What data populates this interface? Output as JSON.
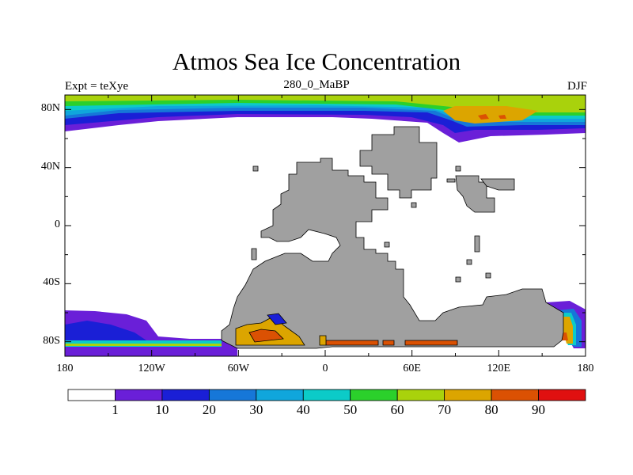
{
  "title": "Atmos Sea Ice Concentration",
  "subtitle_left": "Expt = teXye",
  "subtitle_center": "280_0_MaBP",
  "subtitle_right": "DJF",
  "map": {
    "x_ticks": [
      {
        "lon": -180,
        "label": "180"
      },
      {
        "lon": -120,
        "label": "120W"
      },
      {
        "lon": -60,
        "label": "60W"
      },
      {
        "lon": 0,
        "label": "0"
      },
      {
        "lon": 60,
        "label": "60E"
      },
      {
        "lon": 120,
        "label": "120E"
      },
      {
        "lon": 180,
        "label": "180"
      }
    ],
    "y_ticks": [
      {
        "lat": 80,
        "label": "80N"
      },
      {
        "lat": 40,
        "label": "40N"
      },
      {
        "lat": 0,
        "label": "0"
      },
      {
        "lat": -40,
        "label": "40S"
      },
      {
        "lat": -80,
        "label": "80S"
      }
    ],
    "lon_range": [
      -180,
      180
    ],
    "lat_range": [
      -90,
      90
    ],
    "land_color": "#a0a0a0"
  },
  "colorbar": {
    "levels": [
      "1",
      "10",
      "20",
      "30",
      "40",
      "50",
      "60",
      "70",
      "80",
      "90"
    ],
    "colors": [
      "#ffffff",
      "#6a1fd8",
      "#1a1fd6",
      "#1677d8",
      "#10a6dc",
      "#0ccbc8",
      "#2bd02b",
      "#a9d20c",
      "#dca500",
      "#db5103",
      "#e01010"
    ]
  }
}
